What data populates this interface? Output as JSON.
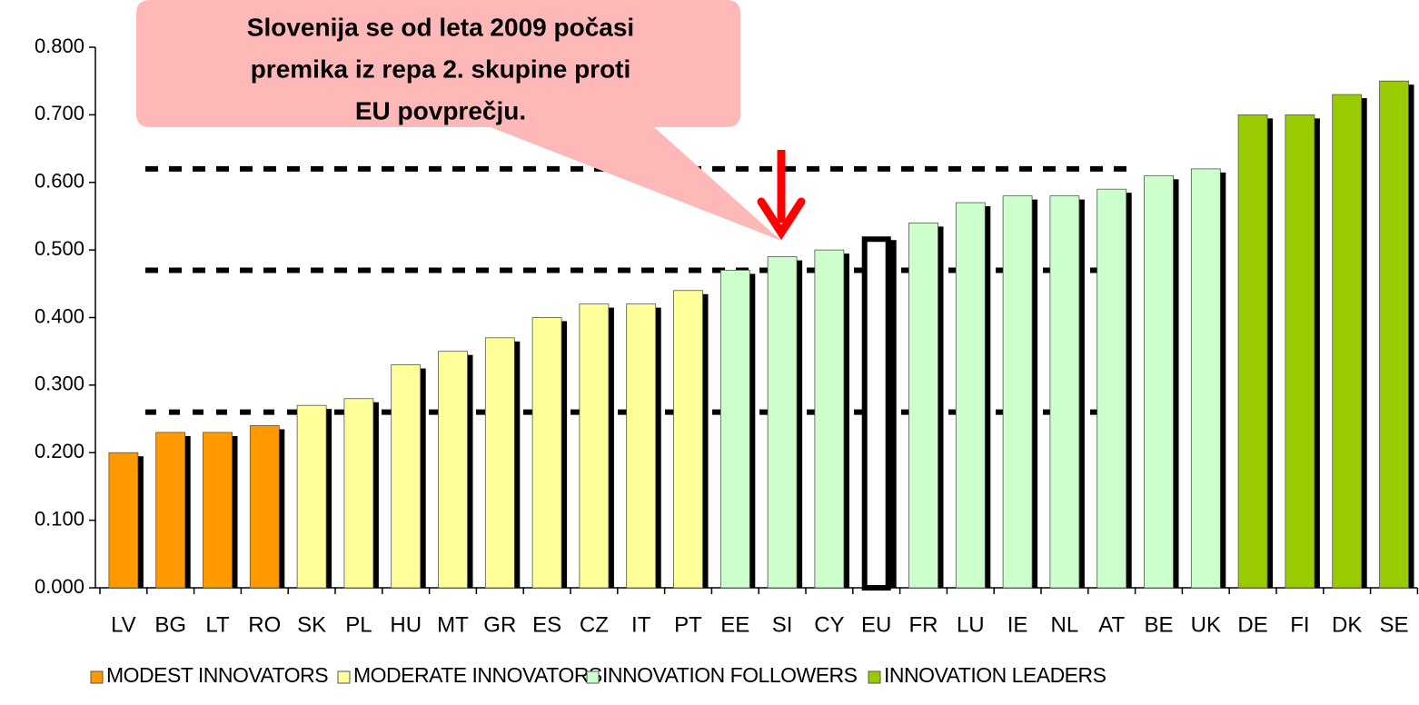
{
  "chart_data": {
    "type": "bar",
    "categories": [
      "LV",
      "BG",
      "LT",
      "RO",
      "SK",
      "PL",
      "HU",
      "MT",
      "GR",
      "ES",
      "CZ",
      "IT",
      "PT",
      "EE",
      "SI",
      "CY",
      "EU",
      "FR",
      "LU",
      "IE",
      "NL",
      "AT",
      "BE",
      "UK",
      "DE",
      "FI",
      "DK",
      "SE"
    ],
    "values": [
      0.2,
      0.23,
      0.23,
      0.24,
      0.27,
      0.28,
      0.33,
      0.35,
      0.37,
      0.4,
      0.42,
      0.42,
      0.44,
      0.47,
      0.49,
      0.5,
      0.52,
      0.54,
      0.57,
      0.58,
      0.58,
      0.59,
      0.61,
      0.62,
      0.7,
      0.7,
      0.73,
      0.75
    ],
    "groups": [
      0,
      0,
      0,
      0,
      1,
      1,
      1,
      1,
      1,
      1,
      1,
      1,
      1,
      2,
      2,
      2,
      null,
      2,
      2,
      2,
      2,
      2,
      2,
      2,
      3,
      3,
      3,
      3
    ],
    "legend": [
      {
        "name": "MODEST INNOVATORS",
        "color": "#ff9900"
      },
      {
        "name": "MODERATE INNOVATORS",
        "color": "#ffff99"
      },
      {
        "name": "INNOVATION FOLLOWERS",
        "color": "#ccffcc"
      },
      {
        "name": "INNOVATION LEADERS",
        "color": "#99cc00"
      }
    ],
    "reference_lines": [
      0.62,
      0.47,
      0.26
    ],
    "ylim": [
      0,
      0.8
    ],
    "yticks": [
      {
        "value": 0,
        "label": "0.000"
      },
      {
        "value": 0.1,
        "label": "0.100"
      },
      {
        "value": 0.2,
        "label": "0.200"
      },
      {
        "value": 0.3,
        "label": "0.300"
      },
      {
        "value": 0.4,
        "label": "0.400"
      },
      {
        "value": 0.5,
        "label": "0.500"
      },
      {
        "value": 0.6,
        "label": "0.600"
      },
      {
        "value": 0.7,
        "label": "0.700"
      },
      {
        "value": 0.8,
        "label": "0.800"
      }
    ],
    "annotation": [
      "Slovenija se od leta 2009 počasi",
      "premika iz repa 2. skupine proti",
      "EU povprečju."
    ]
  }
}
